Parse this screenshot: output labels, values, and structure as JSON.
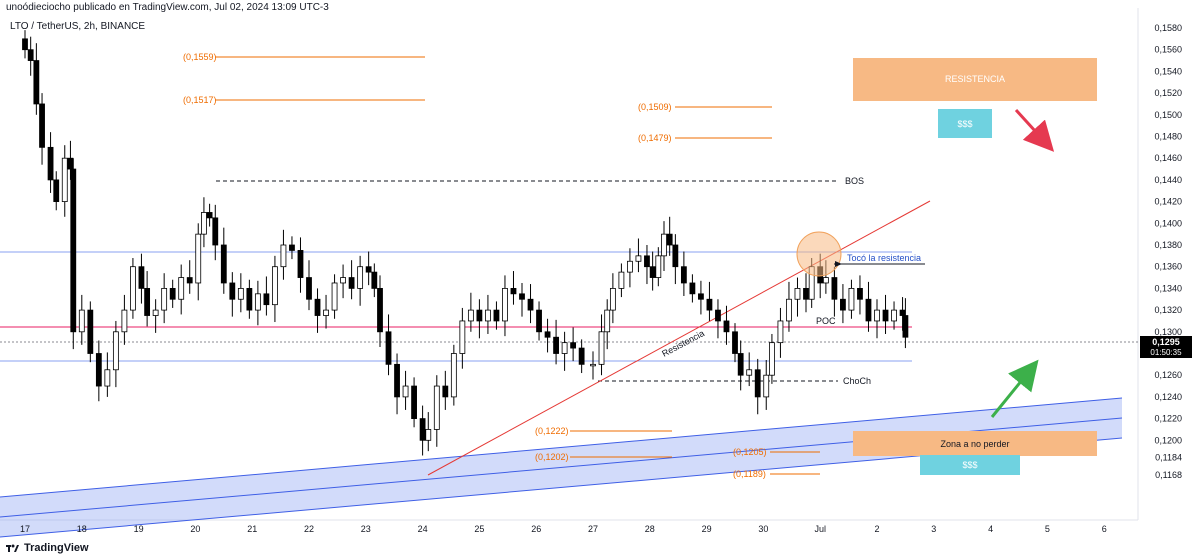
{
  "header": {
    "publisher": "unoódieciocho publicado en TradingView.com, Jul 02, 2024 13:09 UTC-3"
  },
  "symbol": {
    "label": "LTO / TetherUS, 2h, BINANCE"
  },
  "footer": {
    "brand": "TradingView",
    "logo": "tradingview-logo-icon"
  },
  "colors": {
    "up": "#ffffff",
    "down": "#000000",
    "wick": "#000000",
    "level_orange": "#ef6c00",
    "channel_fill": "#7e97f0",
    "channel_line": "#3f5fe6",
    "resistance_line": "#e53935",
    "poc_line": "#e91e63",
    "blue_line": "#8aa0f0",
    "price_badge": "#000000",
    "zone_orange": "#f7b984",
    "zone_cyan": "#6fd2e0",
    "arrow_red": "#e53950",
    "arrow_green": "#3cb04a"
  },
  "chart_data": {
    "type": "candlestick",
    "title": "LTO / TetherUS, 2h, BINANCE",
    "x_ticks": [
      "17",
      "18",
      "19",
      "20",
      "21",
      "22",
      "23",
      "24",
      "25",
      "26",
      "27",
      "28",
      "29",
      "30",
      "Jul",
      "2",
      "3",
      "4",
      "5",
      "6"
    ],
    "y_ticks": [
      "0,1580",
      "0,1560",
      "0,1540",
      "0,1520",
      "0,1500",
      "0,1480",
      "0,1460",
      "0,1440",
      "0,1420",
      "0,1400",
      "0,1380",
      "0,1360",
      "0,1340",
      "0,1320",
      "0,1300",
      "0,1280",
      "0,1260",
      "0,1240",
      "0,1220",
      "0,1200",
      "0,1184",
      "0,1168"
    ],
    "y_tick_values": [
      0.158,
      0.156,
      0.154,
      0.152,
      0.15,
      0.148,
      0.146,
      0.144,
      0.142,
      0.14,
      0.138,
      0.136,
      0.134,
      0.132,
      0.13,
      0.128,
      0.126,
      0.124,
      0.122,
      0.12,
      0.1184,
      0.1168
    ],
    "last_price": "0,1295",
    "last_price_value": 0.1295,
    "countdown": "01:50:35",
    "close_path": [
      {
        "x": 17.0,
        "y": 0.156
      },
      {
        "x": 17.1,
        "y": 0.155
      },
      {
        "x": 17.2,
        "y": 0.151
      },
      {
        "x": 17.3,
        "y": 0.147
      },
      {
        "x": 17.45,
        "y": 0.144
      },
      {
        "x": 17.55,
        "y": 0.142
      },
      {
        "x": 17.7,
        "y": 0.146
      },
      {
        "x": 17.8,
        "y": 0.145
      },
      {
        "x": 17.85,
        "y": 0.13
      },
      {
        "x": 18.0,
        "y": 0.132
      },
      {
        "x": 18.15,
        "y": 0.128
      },
      {
        "x": 18.3,
        "y": 0.125
      },
      {
        "x": 18.45,
        "y": 0.1265
      },
      {
        "x": 18.6,
        "y": 0.13
      },
      {
        "x": 18.75,
        "y": 0.132
      },
      {
        "x": 18.9,
        "y": 0.136
      },
      {
        "x": 19.05,
        "y": 0.134
      },
      {
        "x": 19.15,
        "y": 0.1315
      },
      {
        "x": 19.3,
        "y": 0.132
      },
      {
        "x": 19.45,
        "y": 0.134
      },
      {
        "x": 19.6,
        "y": 0.133
      },
      {
        "x": 19.75,
        "y": 0.135
      },
      {
        "x": 19.9,
        "y": 0.1345
      },
      {
        "x": 20.05,
        "y": 0.139
      },
      {
        "x": 20.15,
        "y": 0.141
      },
      {
        "x": 20.25,
        "y": 0.1405
      },
      {
        "x": 20.35,
        "y": 0.138
      },
      {
        "x": 20.5,
        "y": 0.1345
      },
      {
        "x": 20.65,
        "y": 0.133
      },
      {
        "x": 20.8,
        "y": 0.134
      },
      {
        "x": 20.95,
        "y": 0.132
      },
      {
        "x": 21.1,
        "y": 0.1335
      },
      {
        "x": 21.25,
        "y": 0.1325
      },
      {
        "x": 21.4,
        "y": 0.136
      },
      {
        "x": 21.55,
        "y": 0.138
      },
      {
        "x": 21.7,
        "y": 0.1375
      },
      {
        "x": 21.85,
        "y": 0.135
      },
      {
        "x": 22.0,
        "y": 0.133
      },
      {
        "x": 22.15,
        "y": 0.1315
      },
      {
        "x": 22.3,
        "y": 0.132
      },
      {
        "x": 22.45,
        "y": 0.1345
      },
      {
        "x": 22.6,
        "y": 0.135
      },
      {
        "x": 22.75,
        "y": 0.134
      },
      {
        "x": 22.9,
        "y": 0.136
      },
      {
        "x": 23.05,
        "y": 0.1355
      },
      {
        "x": 23.15,
        "y": 0.134
      },
      {
        "x": 23.25,
        "y": 0.13
      },
      {
        "x": 23.4,
        "y": 0.127
      },
      {
        "x": 23.55,
        "y": 0.124
      },
      {
        "x": 23.7,
        "y": 0.125
      },
      {
        "x": 23.85,
        "y": 0.122
      },
      {
        "x": 24.0,
        "y": 0.12
      },
      {
        "x": 24.1,
        "y": 0.121
      },
      {
        "x": 24.25,
        "y": 0.125
      },
      {
        "x": 24.4,
        "y": 0.124
      },
      {
        "x": 24.55,
        "y": 0.128
      },
      {
        "x": 24.7,
        "y": 0.131
      },
      {
        "x": 24.85,
        "y": 0.132
      },
      {
        "x": 25.0,
        "y": 0.131
      },
      {
        "x": 25.15,
        "y": 0.132
      },
      {
        "x": 25.3,
        "y": 0.131
      },
      {
        "x": 25.45,
        "y": 0.134
      },
      {
        "x": 25.6,
        "y": 0.1335
      },
      {
        "x": 25.75,
        "y": 0.133
      },
      {
        "x": 25.9,
        "y": 0.132
      },
      {
        "x": 26.05,
        "y": 0.13
      },
      {
        "x": 26.2,
        "y": 0.1295
      },
      {
        "x": 26.35,
        "y": 0.128
      },
      {
        "x": 26.5,
        "y": 0.129
      },
      {
        "x": 26.65,
        "y": 0.1285
      },
      {
        "x": 26.8,
        "y": 0.127
      },
      {
        "x": 27.0,
        "y": 0.127
      },
      {
        "x": 27.15,
        "y": 0.13
      },
      {
        "x": 27.25,
        "y": 0.132
      },
      {
        "x": 27.35,
        "y": 0.134
      },
      {
        "x": 27.5,
        "y": 0.1355
      },
      {
        "x": 27.65,
        "y": 0.1365
      },
      {
        "x": 27.8,
        "y": 0.137
      },
      {
        "x": 27.95,
        "y": 0.136
      },
      {
        "x": 28.05,
        "y": 0.135
      },
      {
        "x": 28.15,
        "y": 0.137
      },
      {
        "x": 28.25,
        "y": 0.139
      },
      {
        "x": 28.35,
        "y": 0.138
      },
      {
        "x": 28.45,
        "y": 0.136
      },
      {
        "x": 28.6,
        "y": 0.1345
      },
      {
        "x": 28.75,
        "y": 0.1335
      },
      {
        "x": 28.9,
        "y": 0.133
      },
      {
        "x": 29.05,
        "y": 0.132
      },
      {
        "x": 29.2,
        "y": 0.131
      },
      {
        "x": 29.35,
        "y": 0.13
      },
      {
        "x": 29.5,
        "y": 0.128
      },
      {
        "x": 29.6,
        "y": 0.126
      },
      {
        "x": 29.75,
        "y": 0.1265
      },
      {
        "x": 29.9,
        "y": 0.124
      },
      {
        "x": 30.05,
        "y": 0.126
      },
      {
        "x": 30.15,
        "y": 0.129
      },
      {
        "x": 30.3,
        "y": 0.131
      },
      {
        "x": 30.45,
        "y": 0.133
      },
      {
        "x": 30.6,
        "y": 0.134
      },
      {
        "x": 30.75,
        "y": 0.133
      },
      {
        "x": 30.85,
        "y": 0.136
      },
      {
        "x": 31.0,
        "y": 0.1345
      },
      {
        "x": 31.1,
        "y": 0.135
      },
      {
        "x": 31.25,
        "y": 0.133
      },
      {
        "x": 31.4,
        "y": 0.132
      },
      {
        "x": 31.55,
        "y": 0.134
      },
      {
        "x": 31.7,
        "y": 0.133
      },
      {
        "x": 31.85,
        "y": 0.131
      },
      {
        "x": 32.0,
        "y": 0.132
      },
      {
        "x": 32.15,
        "y": 0.131
      },
      {
        "x": 32.3,
        "y": 0.132
      },
      {
        "x": 32.45,
        "y": 0.1315
      },
      {
        "x": 32.5,
        "y": 0.1295
      }
    ],
    "annotations": {
      "levels": [
        {
          "label": "(0,1559)",
          "value": 0.1559
        },
        {
          "label": "(0,1517)",
          "value": 0.1517
        },
        {
          "label": "(0,1509)",
          "value": 0.1509
        },
        {
          "label": "(0,1479)",
          "value": 0.1479
        },
        {
          "label": "(0,1222)",
          "value": 0.1222
        },
        {
          "label": "(0,1205)",
          "value": 0.1205
        },
        {
          "label": "(0,1202)",
          "value": 0.1202
        },
        {
          "label": "(0,1189)",
          "value": 0.1189
        }
      ],
      "bos_label": "BOS",
      "choch_label": "ChoCh",
      "poc_label": "POC",
      "resistance_line_label": "Resistencia",
      "touch_label": "Tocó la resistencia",
      "resistance_zone_label": "RESISTENCIA",
      "keep_zone_label": "Zona a no perder",
      "money_label_top": "$$$",
      "money_label_bottom": "$$$"
    }
  }
}
